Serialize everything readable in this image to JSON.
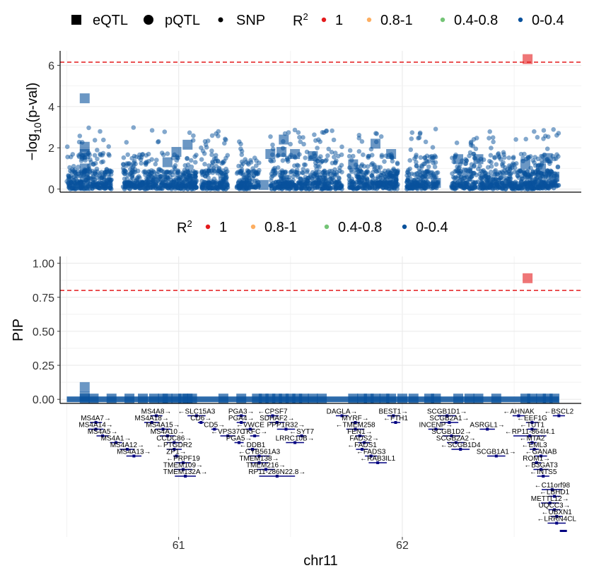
{
  "colors": {
    "r2_1": "#e41a1c",
    "r2_08_1": "#fdae61",
    "r2_04_08": "#74c476",
    "r2_0_04": "#08519c",
    "threshold": "#e41a1c",
    "gene": "#000080",
    "grid": "#ebebeb"
  },
  "legend_top": {
    "shapes": [
      {
        "label": "eQTL",
        "icon": "square-icon"
      },
      {
        "label": "pQTL",
        "icon": "circle-icon"
      },
      {
        "label": "SNP",
        "icon": "small-circle-icon"
      }
    ],
    "r2_title_main": "R",
    "r2_title_sup": "2",
    "r2_items": [
      {
        "label": "1",
        "color_key": "r2_1"
      },
      {
        "label": "0.8-1",
        "color_key": "r2_08_1"
      },
      {
        "label": "0.4-0.8",
        "color_key": "r2_04_08"
      },
      {
        "label": "0-0.4",
        "color_key": "r2_0_04"
      }
    ]
  },
  "legend_mid": {
    "r2_title_main": "R",
    "r2_title_sup": "2",
    "r2_items": [
      {
        "label": "1",
        "color_key": "r2_1"
      },
      {
        "label": "0.8-1",
        "color_key": "r2_08_1"
      },
      {
        "label": "0.4-0.8",
        "color_key": "r2_04_08"
      },
      {
        "label": "0-0.4",
        "color_key": "r2_0_04"
      }
    ]
  },
  "chart_data": [
    {
      "type": "scatter",
      "ylabel_main": "−log",
      "ylabel_sub": "10",
      "ylabel_rest": "(p-val)",
      "xlim": [
        60.47,
        62.8
      ],
      "ylim": [
        -0.15,
        6.7
      ],
      "yticks": [
        "0",
        "2",
        "4",
        "6"
      ],
      "ytick_values": [
        0,
        2,
        4,
        6
      ],
      "threshold": 6.15,
      "x_range": [
        60.5,
        62.7
      ],
      "gaps": [
        [
          60.7,
          60.75
        ],
        [
          61.08,
          61.1
        ],
        [
          61.22,
          61.26
        ],
        [
          61.36,
          61.41
        ],
        [
          61.73,
          61.76
        ],
        [
          61.98,
          62.02
        ],
        [
          62.16,
          62.22
        ]
      ],
      "snp_count": 1800,
      "eqtl_points": [
        {
          "x": 60.58,
          "y": 4.4,
          "r2": "r2_0_04"
        },
        {
          "x": 60.58,
          "y": 2.05,
          "r2": "r2_0_04"
        },
        {
          "x": 60.58,
          "y": 1.7,
          "r2": "r2_0_04"
        },
        {
          "x": 60.58,
          "y": 1.0,
          "r2": "r2_0_04"
        },
        {
          "x": 60.58,
          "y": 0.6,
          "r2": "r2_0_04"
        },
        {
          "x": 60.58,
          "y": 0.15,
          "r2": "r2_0_04"
        },
        {
          "x": 60.68,
          "y": 0.3,
          "r2": "r2_0_04"
        },
        {
          "x": 60.84,
          "y": 0.2,
          "r2": "r2_0_04"
        },
        {
          "x": 60.95,
          "y": 1.3,
          "r2": "r2_0_04"
        },
        {
          "x": 60.99,
          "y": 1.8,
          "r2": "r2_0_04"
        },
        {
          "x": 61.04,
          "y": 2.15,
          "r2": "r2_0_04"
        },
        {
          "x": 61.06,
          "y": 0.5,
          "r2": "r2_0_04"
        },
        {
          "x": 61.2,
          "y": 0.35,
          "r2": "r2_0_04"
        },
        {
          "x": 61.3,
          "y": 0.15,
          "r2": "r2_0_04"
        },
        {
          "x": 61.38,
          "y": 0.2,
          "r2": "r2_0_04"
        },
        {
          "x": 61.41,
          "y": 1.7,
          "r2": "r2_0_04"
        },
        {
          "x": 61.47,
          "y": 2.4,
          "r2": "r2_0_04"
        },
        {
          "x": 61.46,
          "y": 1.8,
          "r2": "r2_0_04"
        },
        {
          "x": 61.52,
          "y": 1.7,
          "r2": "r2_0_04"
        },
        {
          "x": 61.6,
          "y": 1.6,
          "r2": "r2_0_04"
        },
        {
          "x": 61.48,
          "y": 0.3,
          "r2": "r2_0_04"
        },
        {
          "x": 61.64,
          "y": 0.4,
          "r2": "r2_0_04"
        },
        {
          "x": 61.78,
          "y": 1.2,
          "r2": "r2_0_04"
        },
        {
          "x": 61.82,
          "y": 0.3,
          "r2": "r2_0_04"
        },
        {
          "x": 61.88,
          "y": 2.2,
          "r2": "r2_0_04"
        },
        {
          "x": 61.95,
          "y": 1.7,
          "r2": "r2_0_04"
        },
        {
          "x": 61.96,
          "y": 0.5,
          "r2": "r2_0_04"
        },
        {
          "x": 62.05,
          "y": 0.2,
          "r2": "r2_0_04"
        },
        {
          "x": 62.15,
          "y": 0.3,
          "r2": "r2_0_04"
        },
        {
          "x": 62.25,
          "y": 1.45,
          "r2": "r2_0_04"
        },
        {
          "x": 62.29,
          "y": 0.8,
          "r2": "r2_0_04"
        },
        {
          "x": 62.34,
          "y": 1.45,
          "r2": "r2_0_04"
        },
        {
          "x": 62.42,
          "y": 0.3,
          "r2": "r2_0_04"
        },
        {
          "x": 62.56,
          "y": 6.3,
          "r2": "r2_1"
        },
        {
          "x": 62.55,
          "y": 1.2,
          "r2": "r2_0_04"
        },
        {
          "x": 62.62,
          "y": 1.0,
          "r2": "r2_0_04"
        },
        {
          "x": 62.65,
          "y": 1.5,
          "r2": "r2_0_04"
        },
        {
          "x": 62.68,
          "y": 0.6,
          "r2": "r2_0_04"
        }
      ]
    },
    {
      "type": "scatter",
      "ylabel": "PIP",
      "xlabel": "chr11",
      "xlim": [
        60.47,
        62.8
      ],
      "ylim": [
        -0.03,
        1.05
      ],
      "yticks": [
        "0.00",
        "0.25",
        "0.50",
        "0.75",
        "1.00"
      ],
      "ytick_values": [
        0,
        0.25,
        0.5,
        0.75,
        1.0
      ],
      "xticks": [
        "61",
        "62"
      ],
      "xtick_values": [
        61,
        62
      ],
      "threshold": 0.8,
      "x_range": [
        60.5,
        62.7
      ],
      "pip_points": [
        {
          "x": 62.56,
          "y": 0.89,
          "r2": "r2_1"
        },
        {
          "x": 60.58,
          "y": 0.09,
          "r2": "r2_0_04"
        },
        {
          "x": 60.58,
          "y": 0.02,
          "r2": "r2_0_04"
        }
      ],
      "pip_squares_x": [
        60.58,
        60.62,
        60.7,
        60.78,
        60.84,
        60.89,
        60.93,
        60.95,
        60.99,
        61.02,
        61.04,
        61.06,
        61.2,
        61.28,
        61.35,
        61.38,
        61.41,
        61.44,
        61.47,
        61.5,
        61.53,
        61.56,
        61.6,
        61.64,
        61.78,
        61.82,
        61.85,
        61.88,
        61.92,
        61.95,
        62.0,
        62.05,
        62.12,
        62.15,
        62.25,
        62.3,
        62.34,
        62.42,
        62.55,
        62.58,
        62.62,
        62.65,
        62.68
      ]
    }
  ],
  "genes": [
    {
      "label": "MS4A7→",
      "x": 60.63,
      "row": 0
    },
    {
      "label": "MS4A14→",
      "x": 60.63,
      "row": 1
    },
    {
      "label": "MS4A5→",
      "x": 60.66,
      "row": 2
    },
    {
      "label": "MS4A1→",
      "x": 60.72,
      "row": 3
    },
    {
      "label": "MS4A12→",
      "x": 60.77,
      "row": 4
    },
    {
      "label": "MS4A13→",
      "x": 60.8,
      "row": 5
    },
    {
      "label": "MS4A8→",
      "x": 60.9,
      "row": -1
    },
    {
      "label": "MS4A18→",
      "x": 60.88,
      "row": 0
    },
    {
      "label": "MS4A15→",
      "x": 60.93,
      "row": 1
    },
    {
      "label": "MS4A10→",
      "x": 60.95,
      "row": 2
    },
    {
      "label": "CCDC86→",
      "x": 60.98,
      "row": 3
    },
    {
      "label": "←PTGDR2",
      "x": 60.98,
      "row": 4
    },
    {
      "label": "ZP1→",
      "x": 60.99,
      "row": 5
    },
    {
      "label": "←PRPF19",
      "x": 61.02,
      "row": 6
    },
    {
      "label": "TMEM109→",
      "x": 61.02,
      "row": 7
    },
    {
      "label": "TMEM132A→",
      "x": 61.03,
      "row": 8
    },
    {
      "label": "←SLC15A3",
      "x": 61.08,
      "row": -1
    },
    {
      "label": "CD6→",
      "x": 61.1,
      "row": 0
    },
    {
      "label": "PGA3→",
      "x": 61.28,
      "row": -1
    },
    {
      "label": "PGA4→",
      "x": 61.28,
      "row": 0
    },
    {
      "label": "CD5→",
      "x": 61.16,
      "row": 1
    },
    {
      "label": "←VPS37C",
      "x": 61.22,
      "row": 2
    },
    {
      "label": "←VWCE",
      "x": 61.32,
      "row": 1
    },
    {
      "label": "PGA5→",
      "x": 61.27,
      "row": 3
    },
    {
      "label": "TKFC→",
      "x": 61.34,
      "row": 2
    },
    {
      "label": "←DDB1",
      "x": 61.33,
      "row": 4
    },
    {
      "label": "←CYB561A3",
      "x": 61.36,
      "row": 5
    },
    {
      "label": "TMEM138→",
      "x": 61.36,
      "row": 6
    },
    {
      "label": "TMEM216→",
      "x": 61.39,
      "row": 7
    },
    {
      "label": "RP11-286N22.8→",
      "x": 61.44,
      "row": 8
    },
    {
      "label": "←CPSF7",
      "x": 61.42,
      "row": -1
    },
    {
      "label": "SDHAF2→",
      "x": 61.44,
      "row": 0
    },
    {
      "label": "PPP1R32→",
      "x": 61.48,
      "row": 1
    },
    {
      "label": "←SYT7",
      "x": 61.55,
      "row": 2
    },
    {
      "label": "LRRC10B→",
      "x": 61.52,
      "row": 3
    },
    {
      "label": "DAGLA→",
      "x": 61.73,
      "row": -1
    },
    {
      "label": "MYRF→",
      "x": 61.79,
      "row": 0
    },
    {
      "label": "←TMEM258",
      "x": 61.79,
      "row": 1
    },
    {
      "label": "FEN1→",
      "x": 61.81,
      "row": 2
    },
    {
      "label": "FADS2→",
      "x": 61.83,
      "row": 3
    },
    {
      "label": "←FADS1",
      "x": 61.82,
      "row": 4
    },
    {
      "label": "←FADS3",
      "x": 61.86,
      "row": 5
    },
    {
      "label": "←RAB3IL1",
      "x": 61.89,
      "row": 6
    },
    {
      "label": "BEST1→",
      "x": 61.96,
      "row": -1
    },
    {
      "label": "←FTH1",
      "x": 61.97,
      "row": 0
    },
    {
      "label": "SCGB1D1→",
      "x": 62.2,
      "row": -1
    },
    {
      "label": "SCGB2A1→",
      "x": 62.21,
      "row": 0
    },
    {
      "label": "INCENP→",
      "x": 62.15,
      "row": 1
    },
    {
      "label": "SCGB1D2→",
      "x": 62.22,
      "row": 2
    },
    {
      "label": "SCGB2A2→",
      "x": 62.24,
      "row": 3
    },
    {
      "label": "←SCGB1D4",
      "x": 62.26,
      "row": 4
    },
    {
      "label": "ASRGL1→",
      "x": 62.38,
      "row": 1
    },
    {
      "label": "SCGB1A1→",
      "x": 62.42,
      "row": 5
    },
    {
      "label": "←AHNAK",
      "x": 62.52,
      "row": -1
    },
    {
      "label": "←EEF1G",
      "x": 62.58,
      "row": 0
    },
    {
      "label": "←TUT1",
      "x": 62.58,
      "row": 1
    },
    {
      "label": "←RP11-864I4.1",
      "x": 62.57,
      "row": 2
    },
    {
      "label": "←MTA2",
      "x": 62.58,
      "row": 3
    },
    {
      "label": "←EML3",
      "x": 62.59,
      "row": 4
    },
    {
      "label": "←GANAB",
      "x": 62.62,
      "row": 5
    },
    {
      "label": "ROM1→",
      "x": 62.6,
      "row": 6
    },
    {
      "label": "←B3GAT3",
      "x": 62.62,
      "row": 7
    },
    {
      "label": "←INTS5",
      "x": 62.63,
      "row": 8
    },
    {
      "label": "←BSCL2",
      "x": 62.7,
      "row": -1
    },
    {
      "label": "←C11orf98",
      "x": 62.67,
      "row": 10
    },
    {
      "label": "←LBHD1",
      "x": 62.68,
      "row": 11
    },
    {
      "label": "METTL12→",
      "x": 62.66,
      "row": 12
    },
    {
      "label": "UQCC3→",
      "x": 62.68,
      "row": 13
    },
    {
      "label": "←UBXN1",
      "x": 62.69,
      "row": 14
    },
    {
      "label": "←LRRN4CL",
      "x": 62.69,
      "row": 15
    }
  ]
}
